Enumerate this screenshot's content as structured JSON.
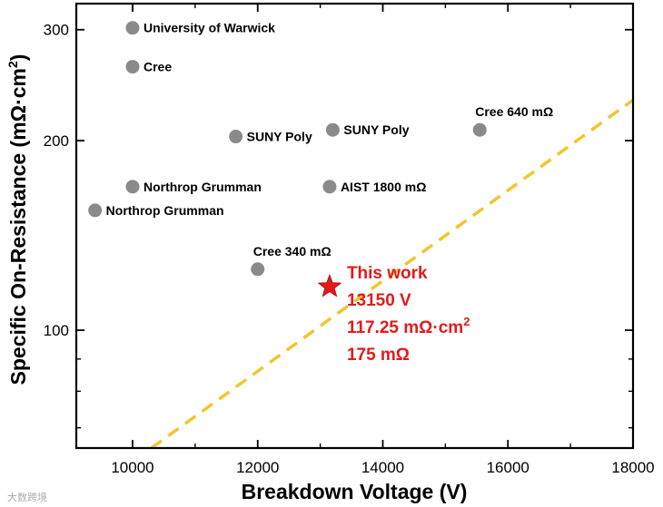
{
  "chart_data": {
    "type": "scatter",
    "xlabel": "Breakdown Voltage (V)",
    "ylabel_main": "Specific On-Resistance (mΩ·cm",
    "ylabel_sup": "2",
    "ylabel_close": ")",
    "xlim": [
      9100,
      18000
    ],
    "ylim": [
      65,
      330
    ],
    "y_scale": "log",
    "grid": false,
    "x_ticks": [
      {
        "value": 10000,
        "label": "10000"
      },
      {
        "value": 12000,
        "label": "12000"
      },
      {
        "value": 14000,
        "label": "14000"
      },
      {
        "value": 16000,
        "label": "16000"
      },
      {
        "value": 18000,
        "label": "18000"
      }
    ],
    "y_ticks": [
      {
        "value": 100,
        "label": "100"
      },
      {
        "value": 200,
        "label": "200"
      },
      {
        "value": 300,
        "label": "300"
      }
    ],
    "points": [
      {
        "label": "University of Warwick",
        "x": 10000,
        "y": 302,
        "label_pos": "right"
      },
      {
        "label": "Cree",
        "x": 10000,
        "y": 262,
        "label_pos": "right"
      },
      {
        "label": "SUNY Poly",
        "x": 11650,
        "y": 203,
        "label_pos": "right"
      },
      {
        "label": "SUNY Poly",
        "x": 13200,
        "y": 208,
        "label_pos": "right"
      },
      {
        "label": "Cree 640 mΩ",
        "x": 15550,
        "y": 208,
        "label_pos": "above"
      },
      {
        "label": "Northrop Grumman",
        "x": 10000,
        "y": 169,
        "label_pos": "right"
      },
      {
        "label": "Northrop Grumman",
        "x": 9400,
        "y": 155,
        "label_pos": "right"
      },
      {
        "label": "AIST 1800 mΩ",
        "x": 13150,
        "y": 169,
        "label_pos": "right"
      },
      {
        "label": "Cree 340 mΩ",
        "x": 12000,
        "y": 125,
        "label_pos": "above"
      }
    ],
    "highlight": {
      "x": 13150,
      "y": 117.25,
      "color": "#e31a1c",
      "marker": "star",
      "lines": [
        "This work",
        "13150 V",
        "117.25 mΩ·cm",
        "175 mΩ"
      ],
      "line3_sup": "2"
    },
    "trend_line": {
      "style": "dashed",
      "color": "#f2c530",
      "from": {
        "x": 10300,
        "y": 65
      },
      "to": {
        "x": 18000,
        "y": 232
      }
    },
    "point_color": "#8a8a8a"
  },
  "watermark": "大数跨境"
}
